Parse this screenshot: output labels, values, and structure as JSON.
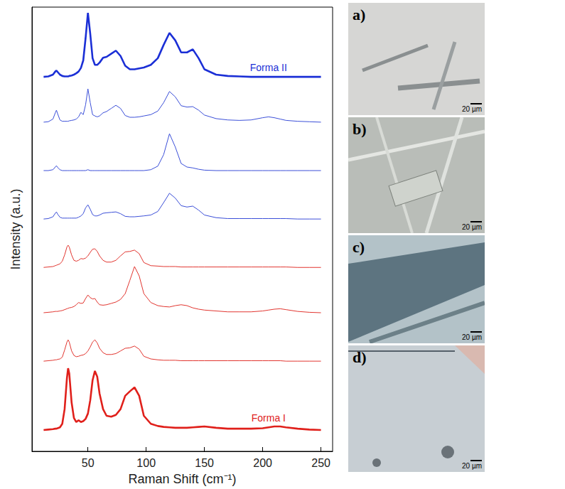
{
  "chart_data": {
    "type": "line",
    "x_label": "Raman Shift (cm⁻¹)",
    "y_label": "Intensity (a.u.)",
    "x": [
      12,
      16,
      20,
      22,
      23,
      24,
      26,
      28,
      30,
      32,
      33,
      34,
      36,
      38,
      40,
      42,
      44,
      46,
      48,
      50,
      52,
      54,
      56,
      58,
      60,
      63,
      66,
      70,
      74,
      78,
      82,
      86,
      90,
      94,
      98,
      104,
      110,
      115,
      120,
      125,
      130,
      135,
      140,
      145,
      150,
      160,
      170,
      180,
      190,
      200,
      205,
      210,
      215,
      220,
      230,
      240,
      250
    ],
    "series": [
      {
        "name": "Forma II",
        "color": "#1b2fd6",
        "line_style": "thick",
        "values": [
          84.3,
          84.4,
          84.8,
          85.5,
          85.7,
          85.4,
          84.8,
          84.5,
          84.4,
          84.4,
          84.4,
          84.5,
          84.6,
          84.8,
          85.1,
          85.5,
          86.3,
          88,
          93,
          98.7,
          94,
          88.5,
          87,
          87,
          87.5,
          88.6,
          88.8,
          89.5,
          90.2,
          89,
          86.8,
          86,
          86,
          86.2,
          86.4,
          87,
          88.5,
          91.5,
          94.2,
          92.5,
          89.8,
          89.8,
          90.5,
          88.5,
          86,
          84.8,
          84.5,
          84.4,
          84.3,
          84.3,
          84.3,
          84.3,
          84.3,
          84.3,
          84.3,
          84.3,
          84.3
        ]
      },
      {
        "color": "#3b4fd8",
        "line_style": "thin",
        "values": [
          74.1,
          74.2,
          74.8,
          76.2,
          76.8,
          76,
          74.6,
          74.3,
          74.3,
          74.3,
          74.3,
          74.4,
          74.5,
          74.6,
          74.8,
          75.3,
          76.3,
          75.8,
          78,
          81.6,
          78.5,
          75.8,
          75.5,
          75.3,
          75.5,
          76.2,
          76.5,
          77.2,
          77.9,
          77.2,
          75.6,
          75.2,
          75.2,
          75.3,
          75.5,
          75.8,
          76.6,
          78.5,
          81,
          79.8,
          77.8,
          77.5,
          77.6,
          76.8,
          75.7,
          74.9,
          74.6,
          74.5,
          74.6,
          75.1,
          75.3,
          75.1,
          74.8,
          74.5,
          74.3,
          74.2,
          74.1
        ]
      },
      {
        "color": "#3b4fd8",
        "line_style": "thin",
        "values": [
          63.2,
          63.2,
          63.4,
          64,
          64.3,
          63.9,
          63.4,
          63.2,
          63.2,
          63.2,
          63.2,
          63.2,
          63.2,
          63.2,
          63.2,
          63.2,
          63.2,
          63.2,
          63.2,
          63.4,
          63.2,
          63.2,
          63.2,
          63.2,
          63.2,
          63.2,
          63.2,
          63.2,
          63.2,
          63.2,
          63.2,
          63.2,
          63.2,
          63.2,
          63.2,
          63.4,
          64.2,
          66.8,
          71.5,
          68.5,
          64.8,
          64,
          63.8,
          63.5,
          63.3,
          63.2,
          63.2,
          63.2,
          63.2,
          63.2,
          63.2,
          63.2,
          63.2,
          63.2,
          63.2,
          63.2,
          63.2
        ]
      },
      {
        "color": "#3b4fd8",
        "line_style": "thin",
        "values": [
          52.3,
          52.4,
          52.8,
          53.6,
          53.9,
          53.4,
          52.7,
          52.5,
          52.5,
          52.5,
          52.5,
          52.5,
          52.5,
          52.5,
          52.5,
          52.7,
          53,
          53.5,
          54.8,
          55.5,
          54.5,
          53.3,
          53,
          53,
          53.2,
          53.6,
          53.7,
          53.8,
          53.9,
          53.5,
          52.9,
          52.8,
          52.8,
          52.9,
          53,
          53.2,
          54,
          56,
          58.1,
          57,
          55.3,
          55,
          55.2,
          54.3,
          53.2,
          52.6,
          52.4,
          52.4,
          52.4,
          52.4,
          52.4,
          52.4,
          52.4,
          52.4,
          52.3,
          52.3,
          52.3
        ]
      },
      {
        "color": "#e2352f",
        "line_style": "thin",
        "values": [
          41.4,
          41.5,
          41.6,
          41.8,
          41.9,
          42,
          42.2,
          42.8,
          44.2,
          46,
          46.4,
          46,
          44.2,
          43,
          42.8,
          43,
          43.4,
          43.3,
          43.5,
          44,
          44.8,
          45.5,
          45.6,
          45,
          44,
          43,
          42.6,
          42.6,
          43,
          44,
          44.9,
          45,
          45.3,
          44.5,
          42.5,
          41.8,
          41.7,
          41.6,
          41.6,
          41.6,
          41.5,
          41.5,
          41.5,
          41.5,
          41.5,
          41.5,
          41.5,
          41.5,
          41.5,
          41.5,
          41.5,
          41.5,
          41.5,
          41.5,
          41.4,
          41.4,
          41.4
        ]
      },
      {
        "color": "#e2352f",
        "line_style": "thin",
        "values": [
          31.2,
          31.3,
          31.4,
          31.5,
          31.5,
          31.5,
          31.6,
          31.7,
          31.9,
          32.1,
          32.2,
          32.3,
          32.4,
          32.6,
          33,
          33.5,
          33.3,
          33.4,
          34.4,
          35.2,
          34.6,
          34.3,
          34.4,
          33.6,
          33,
          32.9,
          33,
          33.3,
          33.6,
          34.2,
          35.5,
          38.5,
          41.6,
          39.5,
          35.5,
          33.5,
          32.8,
          32.6,
          32.5,
          32.8,
          33,
          32.8,
          32.3,
          32,
          31.8,
          31.6,
          31.4,
          31.4,
          31.4,
          31.6,
          31.8,
          32,
          32.1,
          31.9,
          31.5,
          31.3,
          31.2
        ]
      },
      {
        "color": "#e2352f",
        "line_style": "thin",
        "values": [
          20.3,
          20.4,
          20.5,
          20.6,
          20.6,
          20.7,
          20.8,
          21.2,
          22.8,
          24.6,
          25.1,
          24.6,
          22.6,
          21.6,
          21.3,
          21.4,
          21.6,
          21.7,
          22,
          22.6,
          23.5,
          24.6,
          25.1,
          24.4,
          23.2,
          22.2,
          21.8,
          21.8,
          22,
          22.6,
          23.2,
          23.3,
          23.7,
          23,
          21.4,
          20.8,
          20.6,
          20.5,
          20.5,
          20.5,
          20.4,
          20.4,
          20.4,
          20.4,
          20.4,
          20.4,
          20.4,
          20.4,
          20.4,
          20.4,
          20.4,
          20.4,
          20.4,
          20.3,
          20.3,
          20.3,
          20.3
        ]
      },
      {
        "name": "Forma I",
        "color": "#e0201b",
        "line_style": "thick",
        "values": [
          4.8,
          4.9,
          5,
          5.1,
          5.1,
          5.2,
          5.4,
          6.2,
          9.5,
          16.5,
          18.7,
          17.5,
          11,
          7.5,
          6.6,
          7,
          6.6,
          6.8,
          7.3,
          8.5,
          11.5,
          16,
          18.1,
          16.8,
          13,
          9.5,
          8,
          7.8,
          8.2,
          9.5,
          12.5,
          13.5,
          14.4,
          12.5,
          8,
          6.2,
          5.7,
          5.5,
          5.4,
          5.3,
          5.3,
          5.3,
          5.4,
          5.5,
          5.6,
          5.3,
          5.1,
          5.1,
          5.1,
          5.2,
          5.4,
          5.6,
          5.6,
          5.4,
          5.1,
          4.9,
          4.8
        ]
      }
    ],
    "xlim": [
      2,
      260
    ],
    "xticks": [
      50,
      100,
      150,
      200,
      250
    ],
    "ylim": [
      0,
      100
    ],
    "tick_labels": "x",
    "grid": false
  },
  "images": [
    {
      "label": "a)",
      "scale_bar": "20 µm"
    },
    {
      "label": "b)",
      "scale_bar": "20 µm"
    },
    {
      "label": "c)",
      "scale_bar": "20 µm"
    },
    {
      "label": "d)",
      "scale_bar": "20 µm"
    }
  ]
}
